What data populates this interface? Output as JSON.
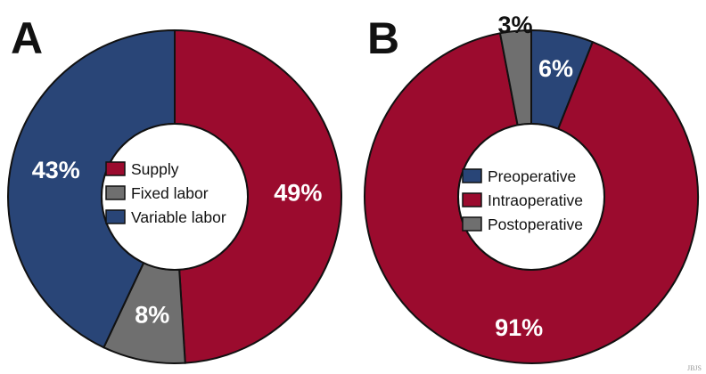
{
  "colors": {
    "red": "#9b0b2e",
    "gray": "#6f6f6f",
    "blue": "#294577",
    "outline": "#111111",
    "label_light": "#ffffff",
    "label_dark": "#111111"
  },
  "chart_data": [
    {
      "type": "pie",
      "panel_label": "A",
      "title": "",
      "slices": [
        {
          "label": "Supply",
          "value": 49,
          "display": "49%",
          "color": "#9b0b2e"
        },
        {
          "label": "Fixed labor",
          "value": 8,
          "display": "8%",
          "color": "#6f6f6f"
        },
        {
          "label": "Variable labor",
          "value": 43,
          "display": "43%",
          "color": "#294577"
        }
      ],
      "legend": [
        "Supply",
        "Fixed labor",
        "Variable labor"
      ],
      "legend_placement": "center"
    },
    {
      "type": "pie",
      "panel_label": "B",
      "title": "",
      "slices": [
        {
          "label": "Preoperative",
          "value": 6,
          "display": "6%",
          "color": "#294577"
        },
        {
          "label": "Intraoperative",
          "value": 91,
          "display": "91%",
          "color": "#9b0b2e"
        },
        {
          "label": "Postoperative",
          "value": 3,
          "display": "3%",
          "color": "#6f6f6f"
        }
      ],
      "legend": [
        "Preoperative",
        "Intraoperative",
        "Postoperative"
      ],
      "legend_placement": "center"
    }
  ],
  "credit": "JBJS"
}
